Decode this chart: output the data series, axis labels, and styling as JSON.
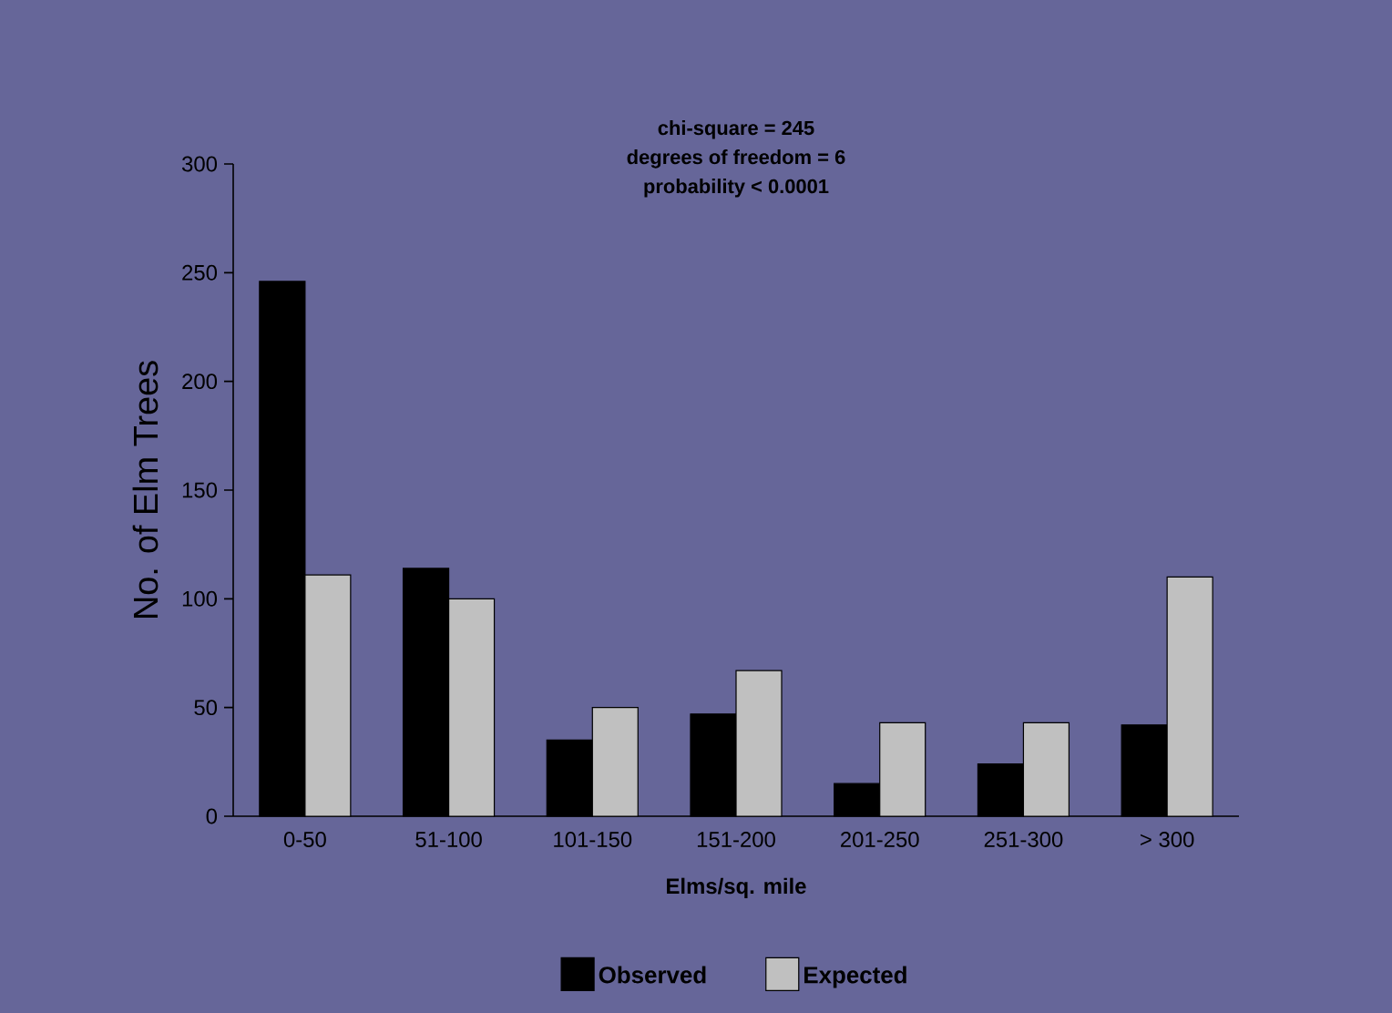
{
  "chart_data": {
    "type": "bar",
    "annotations": [
      "chi-square = 245",
      "degrees of freedom = 6",
      "probability < 0.0001"
    ],
    "xlabel": "Elms/sq. mile",
    "ylabel": "No. of Elm Trees",
    "categories": [
      "0-50",
      "51-100",
      "101-150",
      "151-200",
      "201-250",
      "251-300",
      "> 300"
    ],
    "series": [
      {
        "name": "Observed",
        "color": "#000000",
        "values": [
          246,
          114,
          35,
          47,
          15,
          24,
          42
        ]
      },
      {
        "name": "Expected",
        "color": "#c0c0c0",
        "values": [
          111,
          100,
          50,
          67,
          43,
          43,
          110
        ]
      }
    ],
    "ylim": [
      0,
      300
    ],
    "yticks": [
      0,
      50,
      100,
      150,
      200,
      250,
      300
    ],
    "legend": "bottom"
  }
}
